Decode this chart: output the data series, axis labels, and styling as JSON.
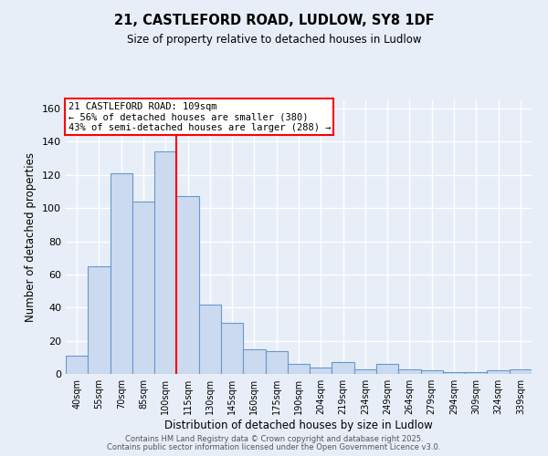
{
  "title1": "21, CASTLEFORD ROAD, LUDLOW, SY8 1DF",
  "title2": "Size of property relative to detached houses in Ludlow",
  "xlabel": "Distribution of detached houses by size in Ludlow",
  "ylabel": "Number of detached properties",
  "bar_labels": [
    "40sqm",
    "55sqm",
    "70sqm",
    "85sqm",
    "100sqm",
    "115sqm",
    "130sqm",
    "145sqm",
    "160sqm",
    "175sqm",
    "190sqm",
    "204sqm",
    "219sqm",
    "234sqm",
    "249sqm",
    "264sqm",
    "279sqm",
    "294sqm",
    "309sqm",
    "324sqm",
    "339sqm"
  ],
  "bar_values": [
    11,
    65,
    121,
    104,
    134,
    107,
    42,
    31,
    15,
    14,
    6,
    4,
    7,
    3,
    6,
    3,
    2,
    1,
    1,
    2,
    3
  ],
  "bar_color": "#ccdaf0",
  "bar_edge_color": "#6699cc",
  "red_line_index": 4.5,
  "annotation_text": "21 CASTLEFORD ROAD: 109sqm\n← 56% of detached houses are smaller (380)\n43% of semi-detached houses are larger (288) →",
  "annotation_box_color": "white",
  "annotation_box_edge": "red",
  "ylim": [
    0,
    165
  ],
  "yticks": [
    0,
    20,
    40,
    60,
    80,
    100,
    120,
    140,
    160
  ],
  "footer1": "Contains HM Land Registry data © Crown copyright and database right 2025.",
  "footer2": "Contains public sector information licensed under the Open Government Licence v3.0.",
  "bg_color": "#e8eef8",
  "grid_color": "white",
  "fig_bg": "#e8eef8"
}
